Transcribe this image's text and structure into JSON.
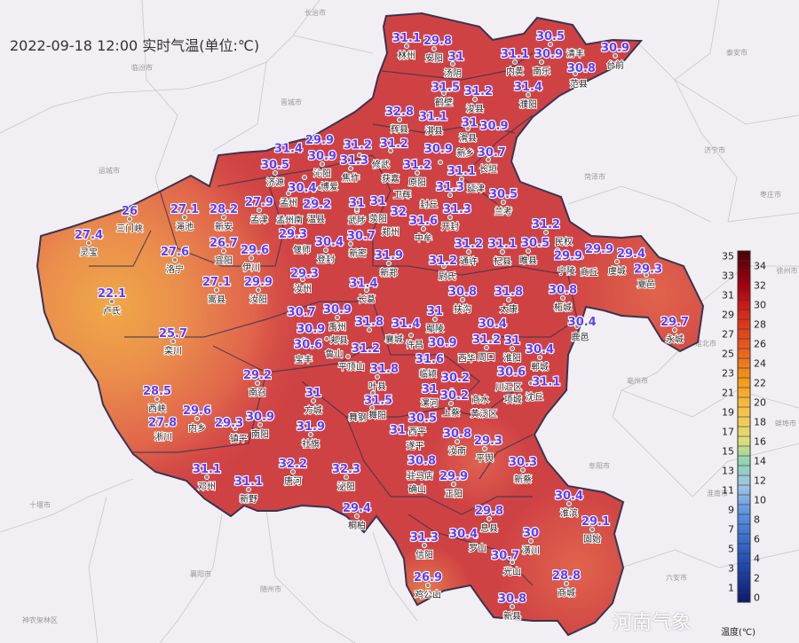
{
  "title": "2022-09-18 12:00 实时气温(单位:℃)",
  "colorbar": {
    "unit_label": "温度(℃)",
    "min": 0,
    "max": 35,
    "ticks": [
      "0",
      "1",
      "2",
      "3",
      "4",
      "5",
      "6",
      "7",
      "8",
      "9",
      "10",
      "11",
      "12",
      "13",
      "14",
      "15",
      "16",
      "17",
      "18",
      "19",
      "20",
      "21",
      "22",
      "23",
      "24",
      "25",
      "26",
      "27",
      "28",
      "29",
      "30",
      "31",
      "32",
      "33",
      "34",
      "35"
    ]
  },
  "watermark": "河南气象",
  "colors": {
    "background": "#f1eef4",
    "hot": "#cc3f42",
    "warm": "#e2694a",
    "cool": "#eea448",
    "temp_label": "#5b3cff"
  },
  "neighbor_cities": [
    "长治市",
    "临汾市",
    "晋城市",
    "运城市",
    "泰安市",
    "济宁市",
    "菏泽市",
    "枣庄市",
    "徐州市",
    "淮北市",
    "亳州市",
    "蚌埠市",
    "阜阳市",
    "淮南市",
    "六安市",
    "襄阳市",
    "随州市",
    "十堰市",
    "神农架林区"
  ],
  "stations": [
    {
      "name": "林州",
      "temp": "31.1"
    },
    {
      "name": "安阳",
      "temp": "29.8"
    },
    {
      "name": "汤阴",
      "temp": "31"
    },
    {
      "name": "鹤壁",
      "temp": "31.5"
    },
    {
      "name": "浚县",
      "temp": "31.2"
    },
    {
      "name": "淇县",
      "temp": "31.1"
    },
    {
      "name": "辉县",
      "temp": "32.8"
    },
    {
      "name": "滑县",
      "temp": "31"
    },
    {
      "name": "长垣",
      "temp": "30.7"
    },
    {
      "name": "内黄",
      "temp": "31.1"
    },
    {
      "name": "南乐",
      "temp": "30.9"
    },
    {
      "name": "清丰",
      "temp": "30.5"
    },
    {
      "name": "濮阳",
      "temp": "31.4"
    },
    {
      "name": "范县",
      "temp": "30.8"
    },
    {
      "name": "台前",
      "temp": "30.9"
    },
    {
      "name": "济源",
      "temp": "30.5"
    },
    {
      "name": "沁阳",
      "temp": "30.9"
    },
    {
      "name": "孟州",
      "temp": "30.4"
    },
    {
      "name": "焦作",
      "temp": "31.3"
    },
    {
      "name": "修武",
      "temp": "31.2"
    },
    {
      "name": "博爱",
      "temp": "31.4"
    },
    {
      "name": "武陟",
      "temp": "31"
    },
    {
      "name": "温县",
      "temp": "29.2"
    },
    {
      "name": "孟州南",
      "temp": "29.9"
    },
    {
      "name": "孟津",
      "temp": "27.9"
    },
    {
      "name": "偃师",
      "temp": "29.3"
    },
    {
      "name": "新安",
      "temp": "28.2"
    },
    {
      "name": "渑池",
      "temp": "27.1"
    },
    {
      "name": "三门峡",
      "temp": "26"
    },
    {
      "name": "灵宝",
      "temp": "27.4"
    },
    {
      "name": "洛宁",
      "temp": "27.6"
    },
    {
      "name": "宜阳",
      "temp": "26.7"
    },
    {
      "name": "伊川",
      "temp": "29.6"
    },
    {
      "name": "嵩县",
      "temp": "27.1"
    },
    {
      "name": "汝阳",
      "temp": "29.9"
    },
    {
      "name": "卢氏",
      "temp": "22.1"
    },
    {
      "name": "栾川",
      "temp": "25.7"
    },
    {
      "name": "登封",
      "temp": "30.4"
    },
    {
      "name": "新密",
      "temp": "30.7"
    },
    {
      "name": "荥阳",
      "temp": "31"
    },
    {
      "name": "郑州",
      "temp": "32"
    },
    {
      "name": "汝州",
      "temp": "29.3"
    },
    {
      "name": "新郑",
      "temp": "31.9"
    },
    {
      "name": "长葛",
      "temp": "31.4"
    },
    {
      "name": "禹州",
      "temp": "30.9"
    },
    {
      "name": "郏县",
      "temp": "30.9"
    },
    {
      "name": "宝丰",
      "temp": "30.6"
    },
    {
      "name": "鲁山",
      "temp": "30.7"
    },
    {
      "name": "平顶山",
      "temp": "31.2"
    },
    {
      "name": "襄城",
      "temp": "31.8"
    },
    {
      "name": "叶县",
      "temp": "31.8"
    },
    {
      "name": "舞阳",
      "temp": "31.5"
    },
    {
      "name": "舞钢",
      "temp": ""
    },
    {
      "name": "许昌",
      "temp": "31.4"
    },
    {
      "name": "鄢陵",
      "temp": "31"
    },
    {
      "name": "扶沟",
      "temp": "30.8"
    },
    {
      "name": "太康",
      "temp": "31.8"
    },
    {
      "name": "临颍",
      "temp": "31.6"
    },
    {
      "name": "漯河",
      "temp": "31"
    },
    {
      "name": "西平",
      "temp": "30.5"
    },
    {
      "name": "上蔡",
      "temp": "30.2"
    },
    {
      "name": "遂平",
      "temp": "31"
    },
    {
      "name": "汝南",
      "temp": "30.8"
    },
    {
      "name": "驻马店",
      "temp": "30.8"
    },
    {
      "name": "确山",
      "temp": ""
    },
    {
      "name": "平舆",
      "temp": "29.3"
    },
    {
      "name": "正阳",
      "temp": "29.9"
    },
    {
      "name": "新蔡",
      "temp": "30.3"
    },
    {
      "name": "淮滨",
      "temp": "30.4"
    },
    {
      "name": "固始",
      "temp": "29.1"
    },
    {
      "name": "息县",
      "temp": "29.8"
    },
    {
      "name": "罗山",
      "temp": "30.4"
    },
    {
      "name": "潢川",
      "temp": "30"
    },
    {
      "name": "光山",
      "temp": "30.7"
    },
    {
      "name": "商城",
      "temp": "28.8"
    },
    {
      "name": "新县",
      "temp": "30.8"
    },
    {
      "name": "信阳",
      "temp": "31.3"
    },
    {
      "name": "鸡公山",
      "temp": "26.9"
    },
    {
      "name": "桐柏",
      "temp": "29.4"
    },
    {
      "name": "泌阳",
      "temp": "32.3"
    },
    {
      "name": "唐河",
      "temp": "32.2"
    },
    {
      "name": "新野",
      "temp": "31.1"
    },
    {
      "name": "邓州",
      "temp": "31.1"
    },
    {
      "name": "社旗",
      "temp": "31.9"
    },
    {
      "name": "方城",
      "temp": "31"
    },
    {
      "name": "南召",
      "temp": "29.2"
    },
    {
      "name": "南阳",
      "temp": "30.9"
    },
    {
      "name": "镇平",
      "temp": "29.3"
    },
    {
      "name": "内乡",
      "temp": "29.6"
    },
    {
      "name": "西峡",
      "temp": "28.5"
    },
    {
      "name": "淅川",
      "temp": "27.8"
    },
    {
      "name": "中牟",
      "temp": "31.6"
    },
    {
      "name": "开封",
      "temp": "31.3"
    },
    {
      "name": "兰考",
      "temp": "30.5"
    },
    {
      "name": "杞县",
      "temp": "31.1"
    },
    {
      "name": "通许",
      "temp": "31.2"
    },
    {
      "name": "尉氏",
      "temp": "31.2"
    },
    {
      "name": "睢县",
      "temp": "30.5"
    },
    {
      "name": "民权",
      "temp": "31.2"
    },
    {
      "name": "宁陵",
      "temp": "29.9"
    },
    {
      "name": "商丘",
      "temp": "29.9"
    },
    {
      "name": "虞城",
      "temp": "29.4"
    },
    {
      "name": "夏邑",
      "temp": "29.3"
    },
    {
      "name": "永城",
      "temp": "29.7"
    },
    {
      "name": "柘城",
      "temp": "30.8"
    },
    {
      "name": "鹿邑",
      "temp": "30.4"
    },
    {
      "name": "郸城",
      "temp": "30.4"
    },
    {
      "name": "淮阳",
      "temp": "31"
    },
    {
      "name": "周口",
      "temp": "31.2"
    },
    {
      "name": "川汇区",
      "temp": "30.6"
    },
    {
      "name": "沈丘",
      "temp": "31.1"
    },
    {
      "name": "项城",
      "temp": ""
    },
    {
      "name": "商水",
      "temp": "30.2"
    },
    {
      "name": "西华",
      "temp": "30.4"
    },
    {
      "name": "黄泛区",
      "temp": "30.9"
    },
    {
      "name": "封丘",
      "temp": "31.3"
    },
    {
      "name": "延津",
      "temp": "31.1"
    },
    {
      "name": "原阳",
      "temp": "31.2"
    },
    {
      "name": "新乡",
      "temp": "30.9"
    },
    {
      "name": "获嘉",
      "temp": "31.2"
    },
    {
      "name": "卫辉",
      "temp": "30.9"
    }
  ]
}
